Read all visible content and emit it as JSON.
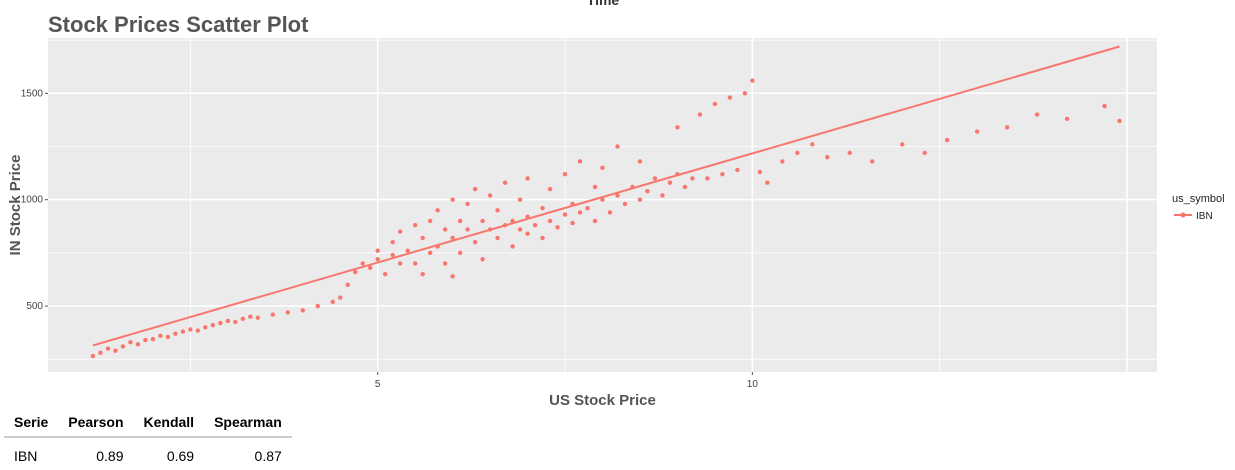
{
  "chart_data": {
    "type": "scatter",
    "title": "Stock Prices Scatter Plot",
    "top_title": "Time",
    "xlabel": "US Stock Price",
    "ylabel": "IN Stock Price",
    "xlim": [
      0.6,
      15.4
    ],
    "ylim": [
      190,
      1760
    ],
    "x_ticks": [
      5,
      10
    ],
    "x_grid": [
      2.5,
      5,
      7.5,
      10,
      12.5,
      15
    ],
    "y_ticks": [
      500,
      1000,
      1500
    ],
    "y_grid": [
      250,
      500,
      750,
      1000,
      1250,
      1500,
      1750
    ],
    "grid": true,
    "legend": {
      "title": "us_symbol",
      "position": "right"
    },
    "series": [
      {
        "name": "IBN",
        "color": "#f8766d",
        "trend_line": {
          "x": [
            1.2,
            14.9
          ],
          "y": [
            315,
            1720
          ]
        },
        "points": [
          [
            1.2,
            265
          ],
          [
            1.3,
            280
          ],
          [
            1.4,
            300
          ],
          [
            1.5,
            290
          ],
          [
            1.6,
            310
          ],
          [
            1.7,
            330
          ],
          [
            1.8,
            320
          ],
          [
            1.9,
            340
          ],
          [
            2.0,
            345
          ],
          [
            2.1,
            360
          ],
          [
            2.2,
            355
          ],
          [
            2.3,
            370
          ],
          [
            2.4,
            380
          ],
          [
            2.5,
            390
          ],
          [
            2.6,
            385
          ],
          [
            2.7,
            400
          ],
          [
            2.8,
            410
          ],
          [
            2.9,
            420
          ],
          [
            3.0,
            430
          ],
          [
            3.1,
            425
          ],
          [
            3.2,
            440
          ],
          [
            3.3,
            450
          ],
          [
            3.4,
            445
          ],
          [
            3.6,
            460
          ],
          [
            3.8,
            470
          ],
          [
            4.0,
            480
          ],
          [
            4.2,
            500
          ],
          [
            4.4,
            520
          ],
          [
            4.5,
            540
          ],
          [
            4.6,
            600
          ],
          [
            4.7,
            660
          ],
          [
            4.8,
            700
          ],
          [
            4.9,
            680
          ],
          [
            5.0,
            720
          ],
          [
            5.0,
            760
          ],
          [
            5.1,
            650
          ],
          [
            5.2,
            740
          ],
          [
            5.2,
            800
          ],
          [
            5.3,
            700
          ],
          [
            5.3,
            850
          ],
          [
            5.4,
            760
          ],
          [
            5.5,
            880
          ],
          [
            5.5,
            700
          ],
          [
            5.6,
            820
          ],
          [
            5.6,
            650
          ],
          [
            5.7,
            900
          ],
          [
            5.7,
            750
          ],
          [
            5.8,
            780
          ],
          [
            5.8,
            950
          ],
          [
            5.9,
            700
          ],
          [
            5.9,
            860
          ],
          [
            6.0,
            820
          ],
          [
            6.0,
            1000
          ],
          [
            6.0,
            640
          ],
          [
            6.1,
            900
          ],
          [
            6.1,
            750
          ],
          [
            6.2,
            980
          ],
          [
            6.2,
            860
          ],
          [
            6.3,
            800
          ],
          [
            6.3,
            1050
          ],
          [
            6.4,
            900
          ],
          [
            6.4,
            720
          ],
          [
            6.5,
            860
          ],
          [
            6.5,
            1020
          ],
          [
            6.6,
            950
          ],
          [
            6.6,
            820
          ],
          [
            6.7,
            880
          ],
          [
            6.7,
            1080
          ],
          [
            6.8,
            900
          ],
          [
            6.8,
            780
          ],
          [
            6.9,
            860
          ],
          [
            6.9,
            1000
          ],
          [
            7.0,
            920
          ],
          [
            7.0,
            840
          ],
          [
            7.0,
            1100
          ],
          [
            7.1,
            880
          ],
          [
            7.2,
            960
          ],
          [
            7.2,
            820
          ],
          [
            7.3,
            900
          ],
          [
            7.3,
            1050
          ],
          [
            7.4,
            870
          ],
          [
            7.5,
            930
          ],
          [
            7.5,
            1120
          ],
          [
            7.6,
            890
          ],
          [
            7.6,
            980
          ],
          [
            7.7,
            940
          ],
          [
            7.7,
            1180
          ],
          [
            7.8,
            960
          ],
          [
            7.9,
            900
          ],
          [
            7.9,
            1060
          ],
          [
            8.0,
            1000
          ],
          [
            8.0,
            1150
          ],
          [
            8.1,
            940
          ],
          [
            8.2,
            1020
          ],
          [
            8.2,
            1250
          ],
          [
            8.3,
            980
          ],
          [
            8.4,
            1060
          ],
          [
            8.5,
            1000
          ],
          [
            8.5,
            1180
          ],
          [
            8.6,
            1040
          ],
          [
            8.7,
            1100
          ],
          [
            8.8,
            1020
          ],
          [
            8.9,
            1080
          ],
          [
            9.0,
            1120
          ],
          [
            9.0,
            1340
          ],
          [
            9.1,
            1060
          ],
          [
            9.2,
            1100
          ],
          [
            9.3,
            1400
          ],
          [
            9.4,
            1100
          ],
          [
            9.5,
            1450
          ],
          [
            9.6,
            1120
          ],
          [
            9.7,
            1480
          ],
          [
            9.8,
            1140
          ],
          [
            9.9,
            1500
          ],
          [
            10.0,
            1560
          ],
          [
            10.1,
            1130
          ],
          [
            10.2,
            1080
          ],
          [
            10.4,
            1180
          ],
          [
            10.6,
            1220
          ],
          [
            10.8,
            1260
          ],
          [
            11.0,
            1200
          ],
          [
            11.3,
            1220
          ],
          [
            11.6,
            1180
          ],
          [
            12.0,
            1260
          ],
          [
            12.3,
            1220
          ],
          [
            12.6,
            1280
          ],
          [
            13.0,
            1320
          ],
          [
            13.4,
            1340
          ],
          [
            13.8,
            1400
          ],
          [
            14.2,
            1380
          ],
          [
            14.7,
            1440
          ],
          [
            14.9,
            1370
          ]
        ]
      }
    ]
  },
  "stats_table": {
    "headers": [
      "Serie",
      "Pearson",
      "Kendall",
      "Spearman"
    ],
    "row": [
      "IBN",
      "0.89",
      "0.69",
      "0.87"
    ]
  }
}
